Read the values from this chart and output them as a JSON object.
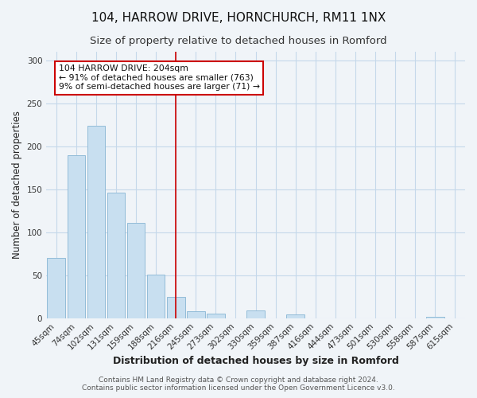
{
  "title": "104, HARROW DRIVE, HORNCHURCH, RM11 1NX",
  "subtitle": "Size of property relative to detached houses in Romford",
  "xlabel": "Distribution of detached houses by size in Romford",
  "ylabel": "Number of detached properties",
  "bar_labels": [
    "45sqm",
    "74sqm",
    "102sqm",
    "131sqm",
    "159sqm",
    "188sqm",
    "216sqm",
    "245sqm",
    "273sqm",
    "302sqm",
    "330sqm",
    "359sqm",
    "387sqm",
    "416sqm",
    "444sqm",
    "473sqm",
    "501sqm",
    "530sqm",
    "558sqm",
    "587sqm",
    "615sqm"
  ],
  "bar_values": [
    70,
    190,
    224,
    146,
    111,
    51,
    25,
    8,
    5,
    0,
    9,
    0,
    4,
    0,
    0,
    0,
    0,
    0,
    0,
    2,
    0
  ],
  "bar_color": "#c8dff0",
  "bar_edge_color": "#92bcd8",
  "vline_x": 6.0,
  "vline_color": "#cc0000",
  "annotation_title": "104 HARROW DRIVE: 204sqm",
  "annotation_line1": "← 91% of detached houses are smaller (763)",
  "annotation_line2": "9% of semi-detached houses are larger (71) →",
  "annotation_box_color": "#ffffff",
  "annotation_box_edge": "#cc0000",
  "ylim": [
    0,
    310
  ],
  "yticks": [
    0,
    50,
    100,
    150,
    200,
    250,
    300
  ],
  "footer1": "Contains HM Land Registry data © Crown copyright and database right 2024.",
  "footer2": "Contains public sector information licensed under the Open Government Licence v3.0.",
  "title_fontsize": 11,
  "subtitle_fontsize": 9.5,
  "xlabel_fontsize": 9,
  "ylabel_fontsize": 8.5,
  "tick_fontsize": 7.5,
  "footer_fontsize": 6.5,
  "bg_color": "#f0f4f8"
}
